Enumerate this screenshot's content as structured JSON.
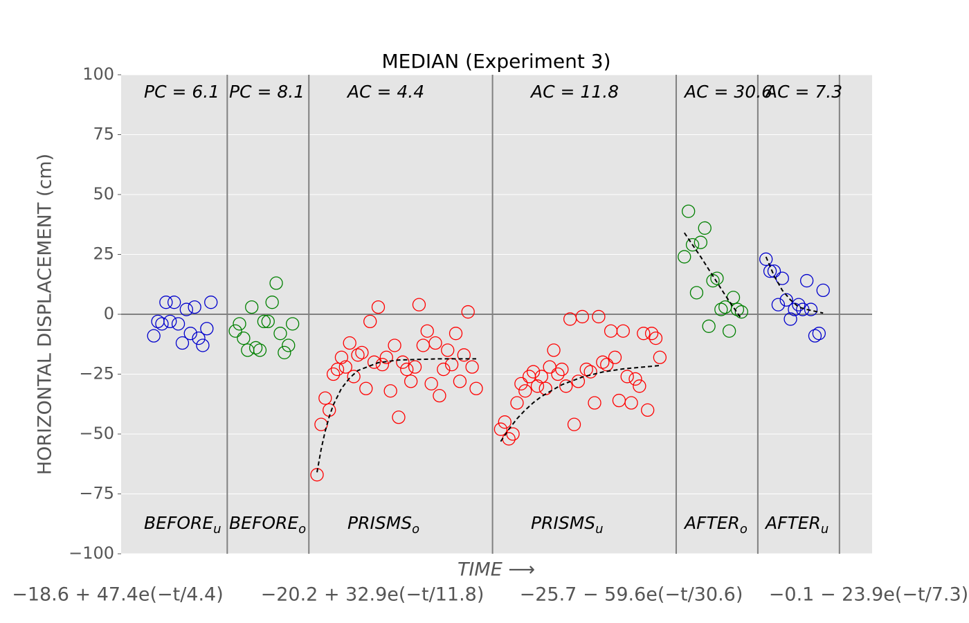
{
  "chart_data": {
    "type": "scatter",
    "title": "MEDIAN (Experiment 3)",
    "ylabel": "HORIZONTAL DISPLACEMENT (cm)",
    "xlabel": "TIME ⟶",
    "xlim": [
      0,
      184
    ],
    "ylim": [
      -100,
      100
    ],
    "yticks": [
      {
        "value": -100,
        "label": "−100"
      },
      {
        "value": -75,
        "label": "−75"
      },
      {
        "value": -50,
        "label": "−50"
      },
      {
        "value": -25,
        "label": "−25"
      },
      0,
      25,
      50,
      75,
      100
    ],
    "grid": true,
    "hline": 0,
    "dividers": [
      26,
      46,
      91,
      136,
      156,
      176
    ],
    "segments": [
      {
        "label": {
          "main": "BEFORE",
          "sub": "u"
        },
        "stat": "PC = 6.1",
        "color": "#0000cc",
        "x": [
          8,
          9,
          10,
          11,
          12,
          13,
          14,
          15,
          16,
          17,
          18,
          19,
          20,
          21,
          22
        ],
        "values": [
          -9,
          -3,
          -4,
          5,
          -3,
          5,
          -4,
          -12,
          2,
          -8,
          3,
          -10,
          -13,
          -6,
          5
        ]
      },
      {
        "label": {
          "main": "BEFORE",
          "sub": "o"
        },
        "stat": "PC = 8.1",
        "color": "#008000",
        "x": [
          28,
          29,
          30,
          31,
          32,
          33,
          34,
          35,
          36,
          37,
          38,
          39,
          40,
          41,
          42
        ],
        "values": [
          -7,
          -4,
          -10,
          -15,
          3,
          -14,
          -15,
          -3,
          -3,
          5,
          13,
          -8,
          -16,
          -13,
          -4
        ]
      },
      {
        "label": {
          "main": "PRISMS",
          "sub": "o"
        },
        "stat": "AC = 4.4",
        "color": "#ff0000",
        "x": [
          48,
          49,
          50,
          51,
          52,
          53,
          54,
          55,
          56,
          57,
          58,
          59,
          60,
          61,
          62,
          63,
          64,
          65,
          66,
          67,
          68,
          69,
          70,
          71,
          72,
          73,
          74,
          75,
          76,
          77,
          78,
          79,
          80,
          81,
          82,
          83,
          84,
          85,
          86,
          87
        ],
        "values": [
          -67,
          -46,
          -35,
          -40,
          -25,
          -23,
          -18,
          -22,
          -12,
          -26,
          -17,
          -16,
          -31,
          -3,
          -20,
          3,
          -21,
          -18,
          -32,
          -13,
          -43,
          -20,
          -23,
          -28,
          -22,
          4,
          -13,
          -7,
          -29,
          -12,
          -34,
          -23,
          -15,
          -21,
          -8,
          -28,
          -17,
          1,
          -22,
          -31
        ],
        "fit": {
          "x": [
            48,
            49,
            50,
            51,
            52,
            54,
            56,
            58,
            63,
            68,
            78,
            87
          ],
          "values": [
            -66,
            -56.4,
            -48.8,
            -42.7,
            -37.8,
            -30.9,
            -26.6,
            -23.5,
            -20.2,
            -19.1,
            -18.6,
            -18.6
          ]
        }
      },
      {
        "label": {
          "main": "PRISMS",
          "sub": "u"
        },
        "stat": "AC = 11.8",
        "color": "#ff0000",
        "x": [
          93,
          94,
          95,
          96,
          97,
          98,
          99,
          100,
          101,
          102,
          103,
          104,
          105,
          106,
          107,
          108,
          109,
          110,
          111,
          112,
          113,
          114,
          115,
          116,
          117,
          118,
          119,
          120,
          121,
          122,
          123,
          124,
          125,
          126,
          127,
          128,
          129,
          130,
          131,
          132
        ],
        "values": [
          -48,
          -45,
          -52,
          -50,
          -37,
          -29,
          -32,
          -26,
          -24,
          -30,
          -26,
          -31,
          -22,
          -15,
          -25,
          -23,
          -30,
          -2,
          -46,
          -28,
          -1,
          -23,
          -24,
          -37,
          -1,
          -20,
          -21,
          -7,
          -18,
          -36,
          -7,
          -26,
          -37,
          -27,
          -30,
          -8,
          -40,
          -8,
          -10,
          -18
        ],
        "fit": {
          "x": [
            93,
            95,
            97,
            99,
            101,
            103,
            108,
            113,
            118,
            123,
            132
          ],
          "values": [
            -53.1,
            -48,
            -43.6,
            -40,
            -36.9,
            -34.3,
            -29.4,
            -26.2,
            -24.1,
            -22.8,
            -21.4
          ]
        }
      },
      {
        "label": {
          "main": "AFTER",
          "sub": "o"
        },
        "stat": "AC = 30.6",
        "color": "#008000",
        "x": [
          138,
          139,
          140,
          141,
          142,
          143,
          144,
          145,
          146,
          147,
          148,
          149,
          150,
          151,
          152
        ],
        "values": [
          24,
          43,
          29,
          9,
          30,
          36,
          -5,
          14,
          15,
          2,
          3,
          -7,
          7,
          2,
          1
        ],
        "fit": {
          "x": [
            138,
            142,
            145,
            148,
            152
          ],
          "values": [
            34,
            24,
            16,
            8,
            -2
          ]
        }
      },
      {
        "label": {
          "main": "AFTER",
          "sub": "u"
        },
        "stat": "AC = 7.3",
        "color": "#0000cc",
        "x": [
          158,
          159,
          160,
          161,
          162,
          163,
          164,
          165,
          166,
          167,
          168,
          169,
          170,
          171,
          172
        ],
        "values": [
          23,
          18,
          18,
          4,
          15,
          6,
          -2,
          2,
          4,
          2,
          14,
          2,
          -9,
          -8,
          10
        ],
        "fit": {
          "x": [
            158,
            160,
            162,
            164,
            166,
            168,
            172
          ],
          "values": [
            24,
            16,
            10,
            6,
            3,
            2,
            0.5
          ]
        }
      }
    ],
    "formulas": [
      "−18.6 + 47.4e(−t/4.4)",
      "−20.2 + 32.9e(−t/11.8)",
      "−25.7 − 59.6e(−t/30.6)",
      "−0.1 − 23.9e(−t/7.3)"
    ]
  }
}
